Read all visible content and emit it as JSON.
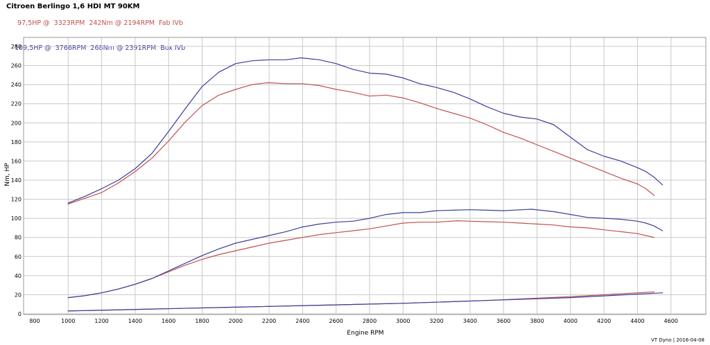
{
  "chart_data": {
    "type": "line",
    "title": "Citroen Berlingo 1,6 HDI MT 90KM",
    "xlabel": "Engine RPM",
    "ylabel": "Nm, HP",
    "xlim": [
      800,
      4600
    ],
    "ylim": [
      0,
      290
    ],
    "grid": true,
    "x_ticks": [
      "800",
      "1000",
      "1200",
      "1400",
      "1600",
      "1800",
      "2000",
      "2200",
      "2400",
      "2600",
      "2800",
      "3000",
      "3200",
      "3400",
      "3600",
      "3800",
      "4000",
      "4200",
      "4400",
      "4600"
    ],
    "y_ticks": [
      "0",
      "20",
      "40",
      "60",
      "80",
      "100",
      "120",
      "140",
      "160",
      "180",
      "200",
      "220",
      "240",
      "260",
      "280"
    ],
    "legend": [
      {
        "power": "97,5HP @  3323RPM",
        "torque": "242Nm @ 2194RPM",
        "label": "Fab IVb",
        "color": "#c0504d"
      },
      {
        "power": "109,5HP @  3766RPM",
        "torque": "268Nm @ 2391RPM",
        "label": "Box IVb",
        "color": "#3c3c9c"
      }
    ],
    "series": [
      {
        "name": "Fab IVb",
        "color": "#c0504d",
        "quantity": "torque",
        "x": [
          1000,
          1100,
          1200,
          1300,
          1400,
          1500,
          1600,
          1700,
          1800,
          1900,
          2000,
          2100,
          2194,
          2300,
          2400,
          2500,
          2600,
          2700,
          2800,
          2900,
          3000,
          3100,
          3200,
          3300,
          3400,
          3500,
          3600,
          3700,
          3800,
          3900,
          4000,
          4100,
          4200,
          4300,
          4400,
          4450,
          4500
        ],
        "y": [
          115,
          121,
          127,
          137,
          149,
          163,
          181,
          201,
          218,
          229,
          235,
          240,
          242,
          241,
          241,
          239,
          235,
          232,
          228,
          229,
          226,
          221,
          215,
          210,
          205,
          198,
          190,
          184,
          177,
          170,
          163,
          156,
          149,
          142,
          136,
          131,
          124
        ]
      },
      {
        "name": "Box IVb",
        "color": "#3c3c9c",
        "quantity": "torque",
        "x": [
          1000,
          1100,
          1200,
          1300,
          1400,
          1500,
          1600,
          1700,
          1800,
          1900,
          2000,
          2100,
          2200,
          2300,
          2391,
          2500,
          2600,
          2700,
          2800,
          2900,
          3000,
          3100,
          3200,
          3300,
          3400,
          3500,
          3600,
          3700,
          3800,
          3900,
          4000,
          4100,
          4200,
          4300,
          4400,
          4450,
          4500,
          4550
        ],
        "y": [
          116,
          123,
          131,
          140,
          152,
          168,
          191,
          215,
          238,
          253,
          262,
          265,
          266,
          266,
          268,
          266,
          262,
          256,
          252,
          251,
          247,
          241,
          237,
          232,
          225,
          217,
          210,
          206,
          204,
          198,
          185,
          172,
          165,
          160,
          153,
          149,
          143,
          135
        ]
      },
      {
        "name": "Fab IVb",
        "color": "#c0504d",
        "quantity": "power",
        "x": [
          1000,
          1100,
          1200,
          1300,
          1400,
          1500,
          1600,
          1700,
          1800,
          1900,
          2000,
          2100,
          2200,
          2300,
          2400,
          2500,
          2600,
          2700,
          2800,
          2900,
          3000,
          3100,
          3200,
          3323,
          3400,
          3500,
          3600,
          3700,
          3800,
          3900,
          4000,
          4100,
          4200,
          4300,
          4400,
          4450,
          4500
        ],
        "y": [
          17,
          19,
          22,
          26,
          31,
          37,
          44,
          51,
          57,
          62,
          66,
          70,
          74,
          77,
          80,
          83,
          85,
          87,
          89,
          92,
          95,
          96,
          96,
          97.5,
          97,
          96.5,
          96,
          95,
          94,
          93,
          91,
          90,
          88,
          86,
          84,
          82,
          80
        ]
      },
      {
        "name": "Box IVb",
        "color": "#3c3c9c",
        "quantity": "power",
        "x": [
          1000,
          1100,
          1200,
          1300,
          1400,
          1500,
          1600,
          1700,
          1800,
          1900,
          2000,
          2100,
          2200,
          2300,
          2400,
          2500,
          2600,
          2700,
          2800,
          2900,
          3000,
          3100,
          3200,
          3300,
          3400,
          3500,
          3600,
          3766,
          3900,
          4000,
          4100,
          4200,
          4300,
          4400,
          4450,
          4500,
          4550
        ],
        "y": [
          17,
          19,
          22,
          26,
          31,
          37,
          45,
          53,
          61,
          68,
          74,
          78,
          82,
          86,
          91,
          94,
          96,
          97,
          100,
          104,
          106,
          106,
          108,
          108.5,
          109,
          108.5,
          108,
          109.5,
          107,
          104,
          101,
          100,
          99,
          97,
          95,
          92,
          87
        ]
      },
      {
        "name": "Fab IVb",
        "color": "#c0504d",
        "quantity": "loss",
        "x": [
          1000,
          1500,
          2000,
          2500,
          3000,
          3500,
          4000,
          4500
        ],
        "y": [
          3,
          5,
          7,
          9,
          11,
          14,
          18,
          23
        ]
      },
      {
        "name": "Box IVb",
        "color": "#3c3c9c",
        "quantity": "loss",
        "x": [
          1000,
          1500,
          2000,
          2500,
          3000,
          3500,
          4000,
          4550
        ],
        "y": [
          3,
          5,
          7,
          9,
          11,
          14,
          17,
          22
        ]
      }
    ],
    "credit": "VT Dyno | 2016-04-08"
  }
}
